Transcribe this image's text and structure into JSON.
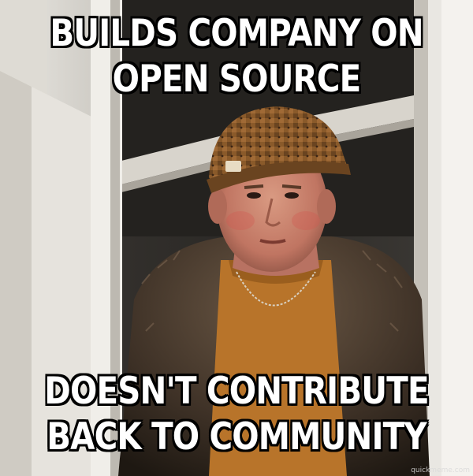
{
  "meme": {
    "top_lines": [
      "BUILDS COMPANY ON",
      "OPEN SOURCE"
    ],
    "bottom_lines": [
      "DOESN'T CONTRIBUTE",
      "BACK TO COMMUNITY"
    ],
    "watermark": "quickmeme.com"
  },
  "colors": {
    "caption_fill": "#ffffff",
    "caption_outline": "#000000",
    "beanie": "#8a5a2a",
    "shirt": "#b8742a",
    "fur_coat": "#4a3a2c"
  }
}
